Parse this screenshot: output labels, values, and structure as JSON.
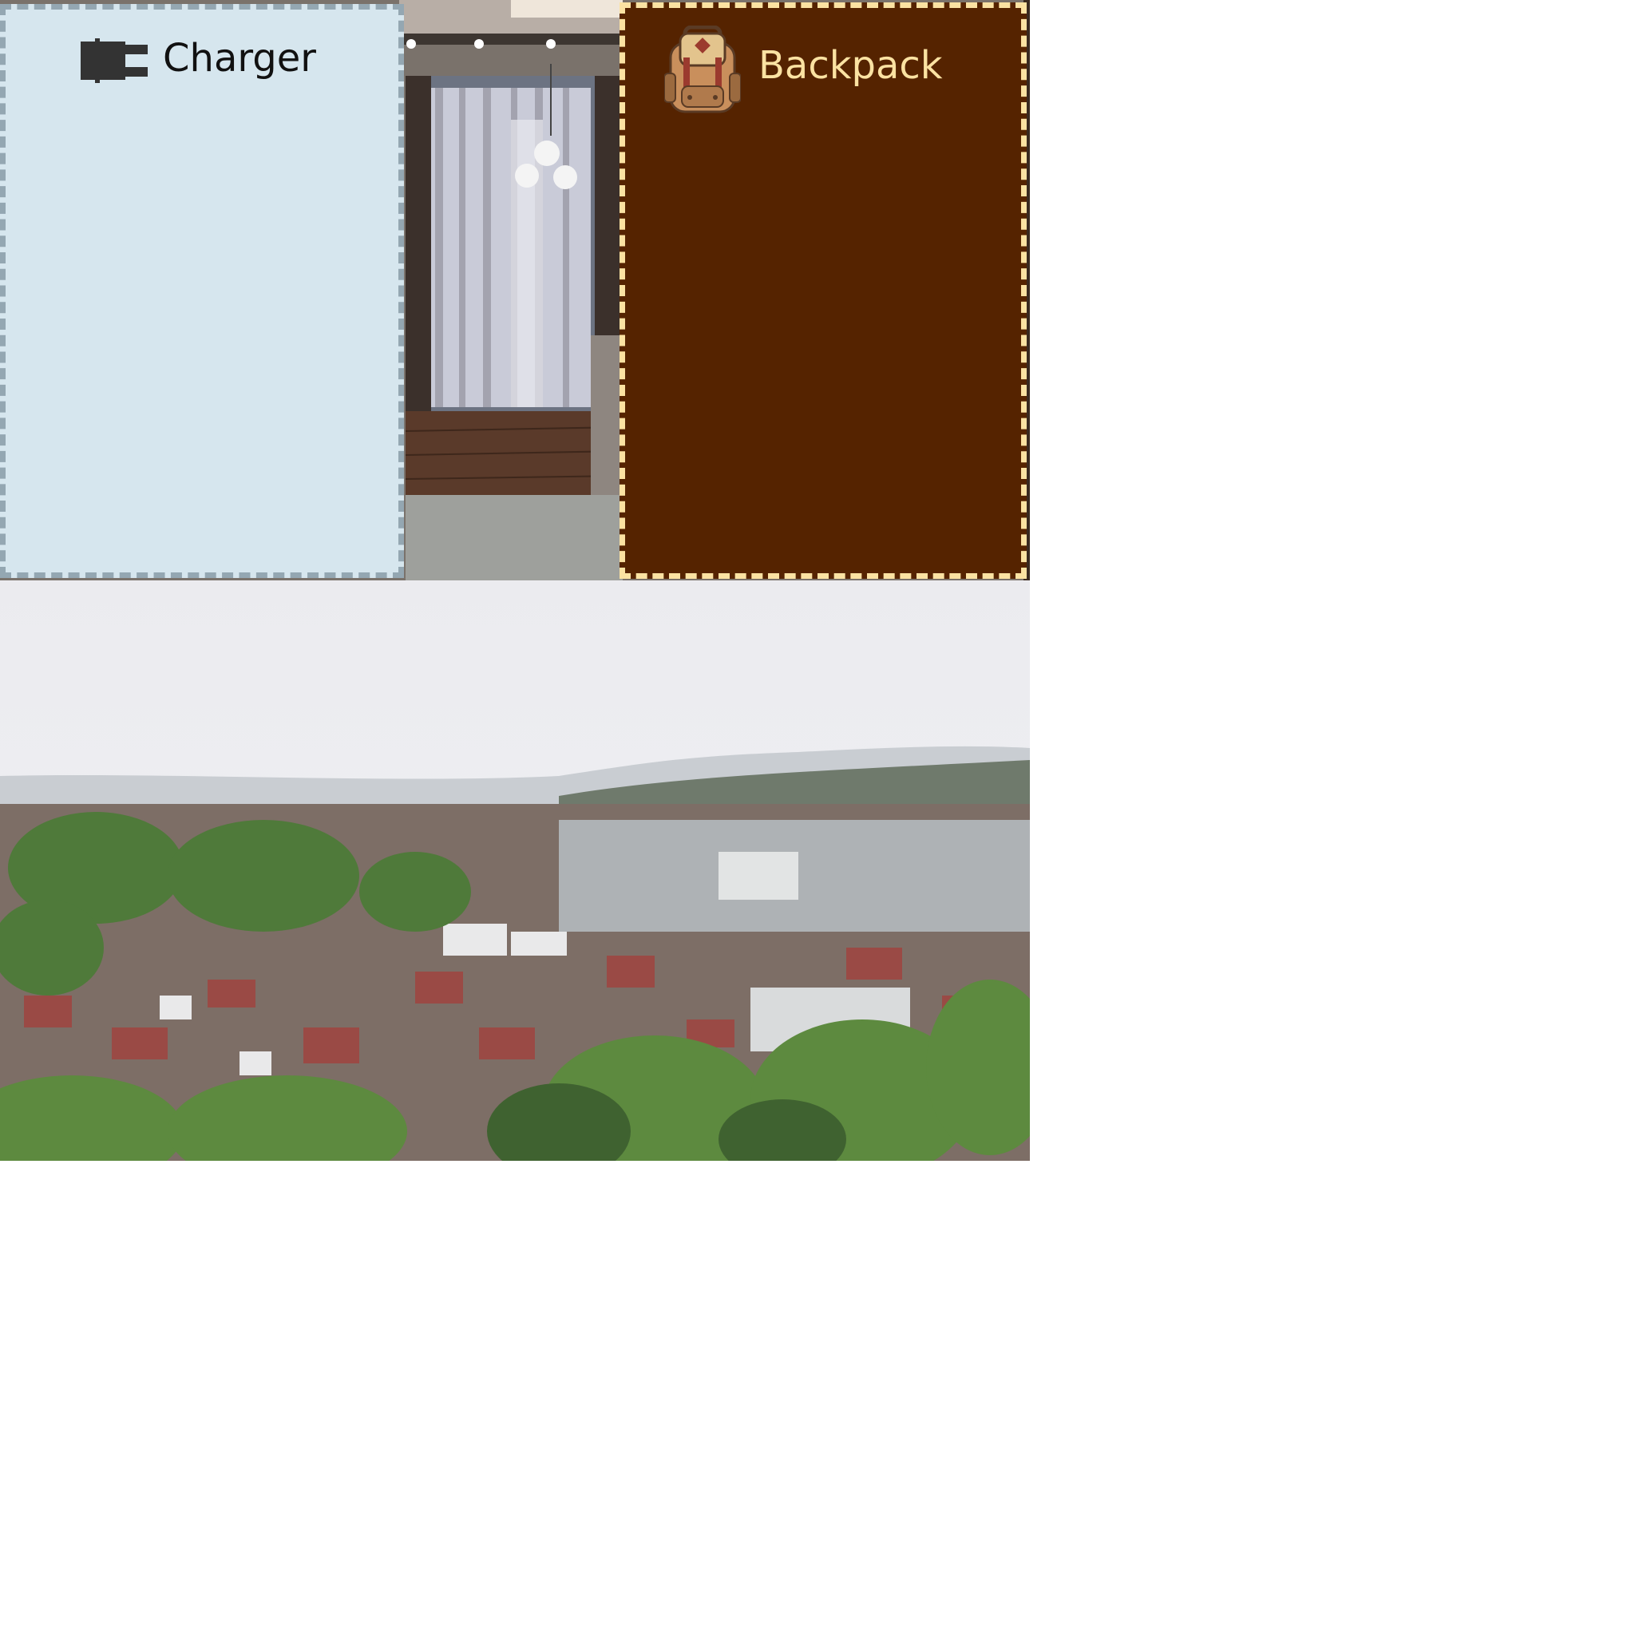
{
  "scenes": {
    "room": {
      "name": "living-room-window"
    },
    "town": {
      "name": "hillside-town-panorama"
    }
  },
  "inventory": {
    "charger": {
      "label": "Charger",
      "icon": "plug-icon",
      "panel_color": "#d6e6ee",
      "border_color": "#94a7b2",
      "text_color": "#111111"
    },
    "backpack": {
      "label": "Backpack",
      "icon": "backpack-icon",
      "panel_color": "#552300",
      "border_color": "#fbe2a2",
      "text_color": "#fbe2a2"
    }
  }
}
